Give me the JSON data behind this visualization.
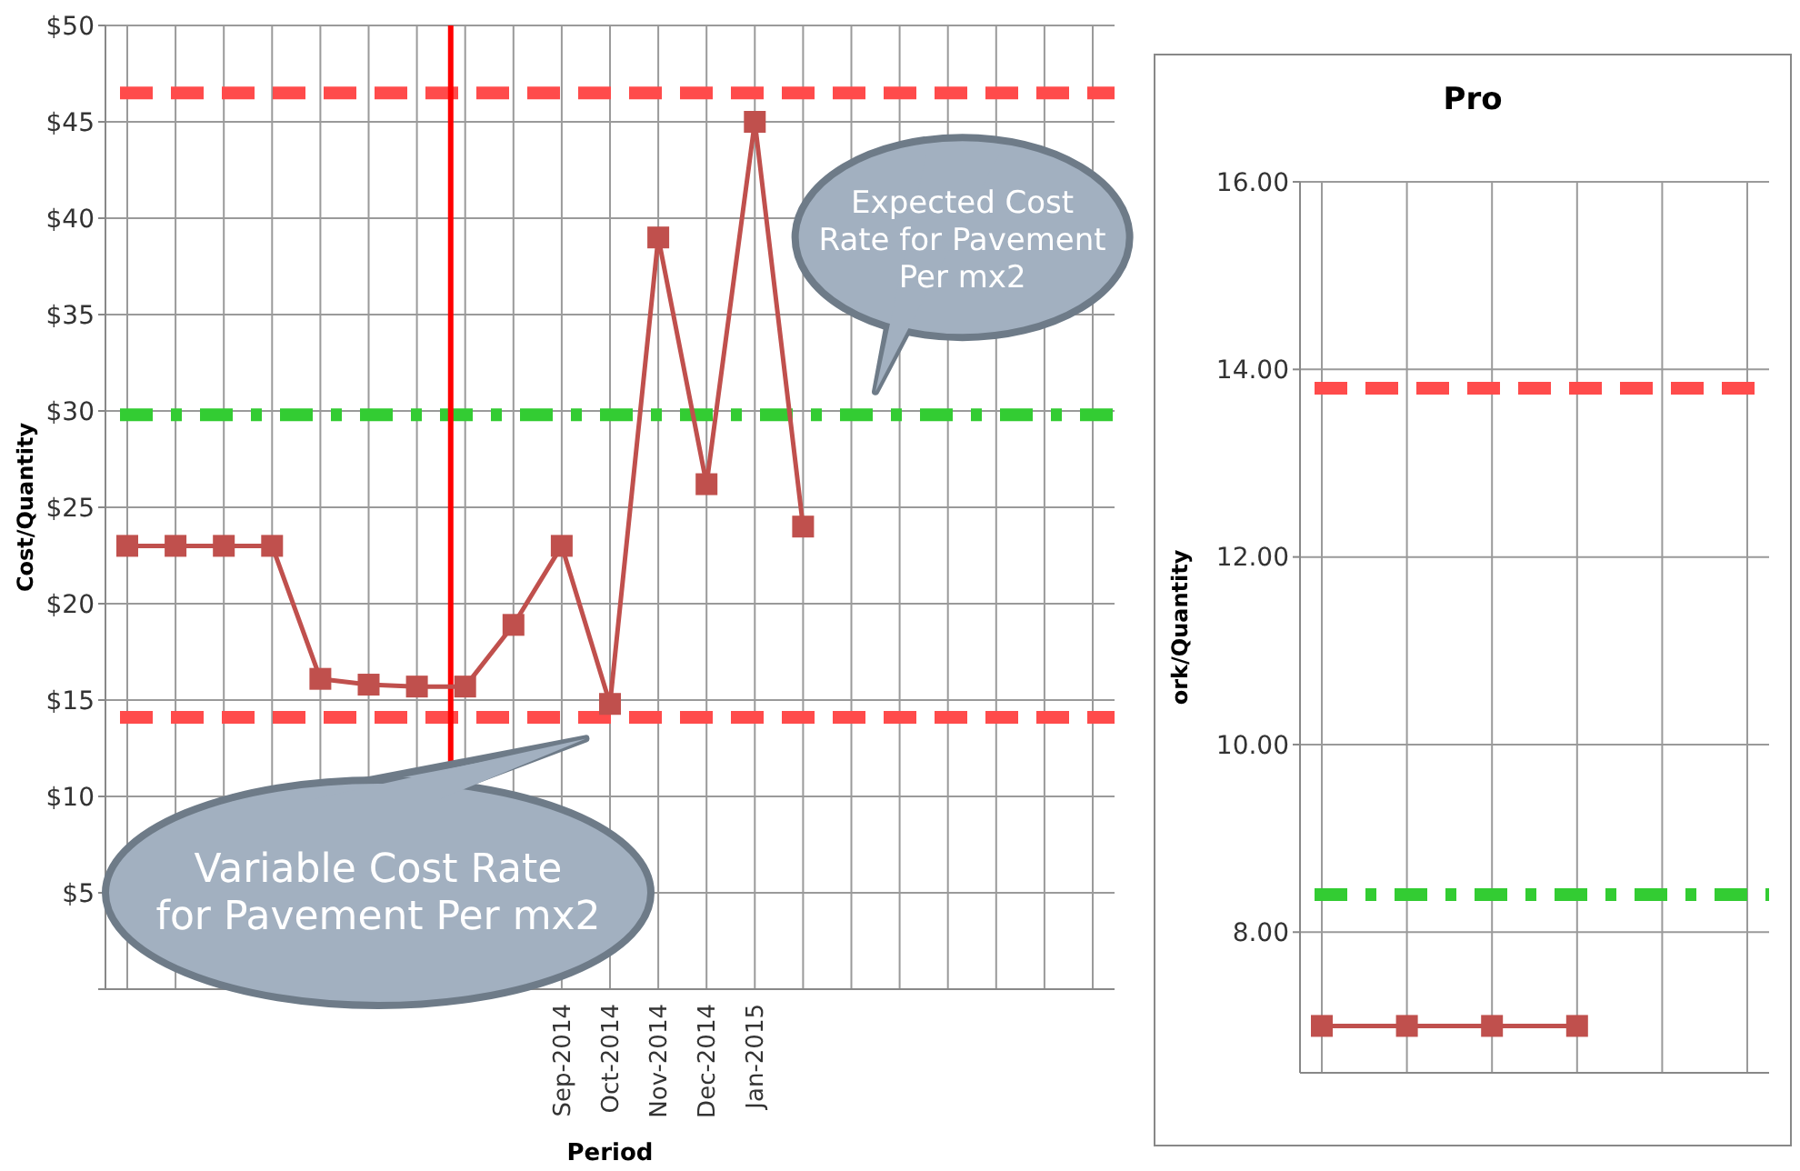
{
  "chart_data": [
    {
      "type": "line",
      "ylabel": "Cost/Quantity",
      "xlabel": "Period",
      "categories": [
        null,
        null,
        null,
        null,
        null,
        null,
        null,
        null,
        null,
        "Sep-2014",
        "Oct-2014",
        "Nov-2014",
        "Dec-2014",
        "Jan-2015",
        null,
        null,
        null,
        null,
        null,
        null,
        null
      ],
      "series": [
        {
          "color": "#c0504d",
          "values": [
            23,
            23,
            23,
            23,
            16.1,
            15.8,
            15.7,
            15.7,
            18.9,
            23,
            14.8,
            39,
            26.2,
            45,
            24,
            null,
            null,
            null,
            null,
            null,
            null
          ]
        }
      ],
      "ylim": [
        0,
        50
      ],
      "yticks": [
        {
          "value": 0,
          "label": null
        },
        {
          "value": 5,
          "label": "$5"
        },
        {
          "value": 10,
          "label": "$10"
        },
        {
          "value": 15,
          "label": "$15"
        },
        {
          "value": 20,
          "label": "$20"
        },
        {
          "value": 25,
          "label": "$25"
        },
        {
          "value": 30,
          "label": "$30"
        },
        {
          "value": 35,
          "label": "$35"
        },
        {
          "value": 40,
          "label": "$40"
        },
        {
          "value": 45,
          "label": "$45"
        },
        {
          "value": 50,
          "label": "$50"
        }
      ],
      "grid": true,
      "marker": "square",
      "line_style": "solid",
      "ref_lines": [
        {
          "axis": "y",
          "value": 46.5,
          "color": "#ff4b4b",
          "line_style": "dashed"
        },
        {
          "axis": "y",
          "value": 29.8,
          "color": "#33cc33",
          "line_style": "dotted"
        },
        {
          "axis": "y",
          "value": 14.1,
          "color": "#ff4b4b",
          "line_style": "dashed"
        }
      ],
      "annotations": [
        "Variable Cost Rate for Pavement  Per mx2",
        "Expected Cost Rate for Pavement Per mx2"
      ]
    },
    {
      "type": "line",
      "title": "Pro",
      "ylabel": "ork/Quantity",
      "categories": [
        null,
        null,
        null,
        null,
        null,
        null
      ],
      "series": [
        {
          "color": "#c0504d",
          "values": [
            7.0,
            7.0,
            7.0,
            7.0,
            null,
            null
          ]
        }
      ],
      "ylim": [
        6.5,
        16
      ],
      "yticks": [
        {
          "value": 8,
          "label": "8.00"
        },
        {
          "value": 10,
          "label": "10.00"
        },
        {
          "value": 12,
          "label": "12.00"
        },
        {
          "value": 14,
          "label": "14.00"
        },
        {
          "value": 16,
          "label": "16.00"
        }
      ],
      "grid": true,
      "marker": "square",
      "line_style": "solid",
      "ref_lines": [
        {
          "axis": "y",
          "value": 13.8,
          "color": "#ff4b4b",
          "line_style": "dashed"
        },
        {
          "axis": "y",
          "value": 8.4,
          "color": "#33cc33",
          "line_style": "dotted"
        }
      ]
    }
  ]
}
